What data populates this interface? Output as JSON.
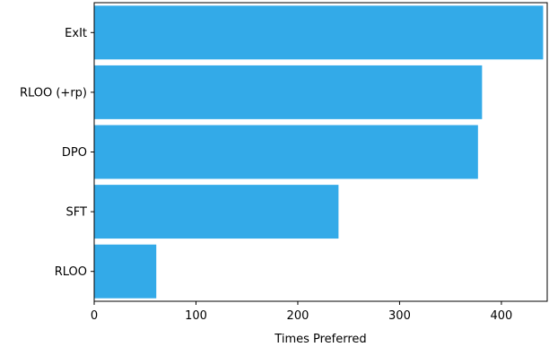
{
  "chart_data": {
    "type": "bar",
    "orientation": "horizontal",
    "categories": [
      "ExIt",
      "RLOO (+rp)",
      "DPO",
      "SFT",
      "RLOO"
    ],
    "values": [
      441,
      381,
      377,
      240,
      61
    ],
    "xlabel": "Times Preferred",
    "ylabel": "",
    "title": "",
    "xlim": [
      0,
      445
    ],
    "xticks": [
      0,
      100,
      200,
      300,
      400
    ],
    "bar_color": "#33aae8",
    "grid": false,
    "legend": "none"
  }
}
